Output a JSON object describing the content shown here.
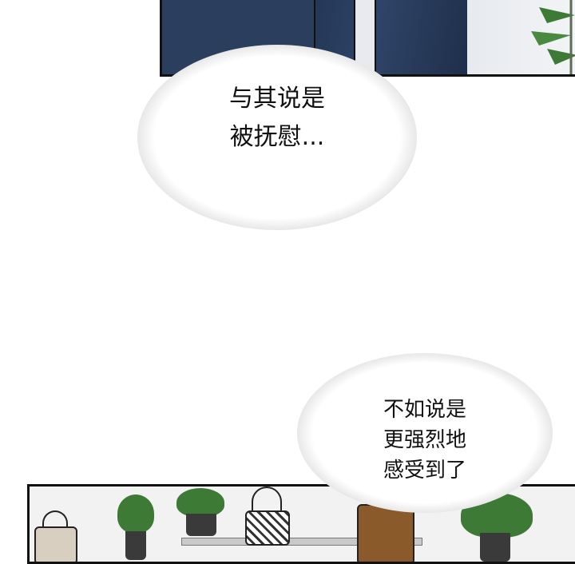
{
  "speech_bubbles": [
    {
      "text": "与其说是\n被抚慰..."
    },
    {
      "text": "不如说是\n更强烈地\n感受到了"
    }
  ],
  "colors": {
    "suit": "#2b3e5e",
    "plant": "#3d7a36",
    "bag": "#8a5a2b"
  }
}
